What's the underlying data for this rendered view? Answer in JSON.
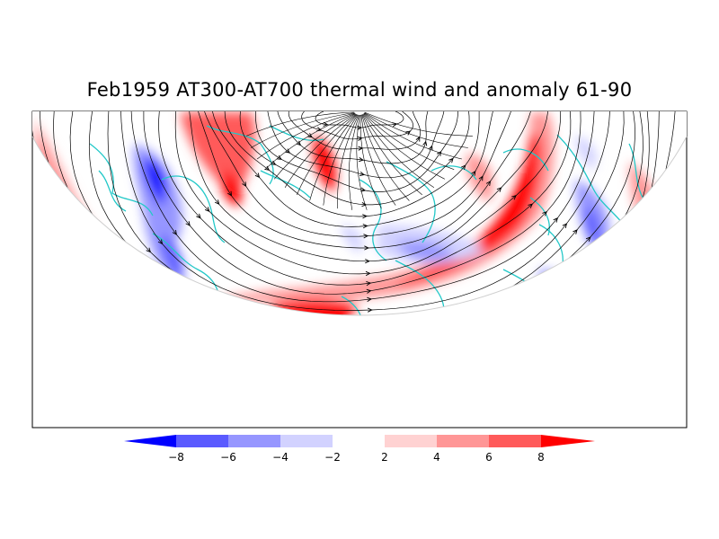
{
  "title": "Feb1959 AT300-AT700 thermal wind and anomaly 61-90",
  "colorbar": {
    "ticks": [
      "-8",
      "-6",
      "-4",
      "-2",
      "2",
      "4",
      "6",
      "8"
    ],
    "colors": [
      "#0000ff",
      "#5a5aff",
      "#9696ff",
      "#d2d2ff",
      "#ffffff",
      "#ffd2d2",
      "#ff9696",
      "#ff5a5a",
      "#ff0000"
    ]
  },
  "map": {
    "projection": "polar-stereographic half disk",
    "coastline_color": "#22c8c8",
    "streamline_color": "#000000",
    "frame_color": "#000000"
  }
}
